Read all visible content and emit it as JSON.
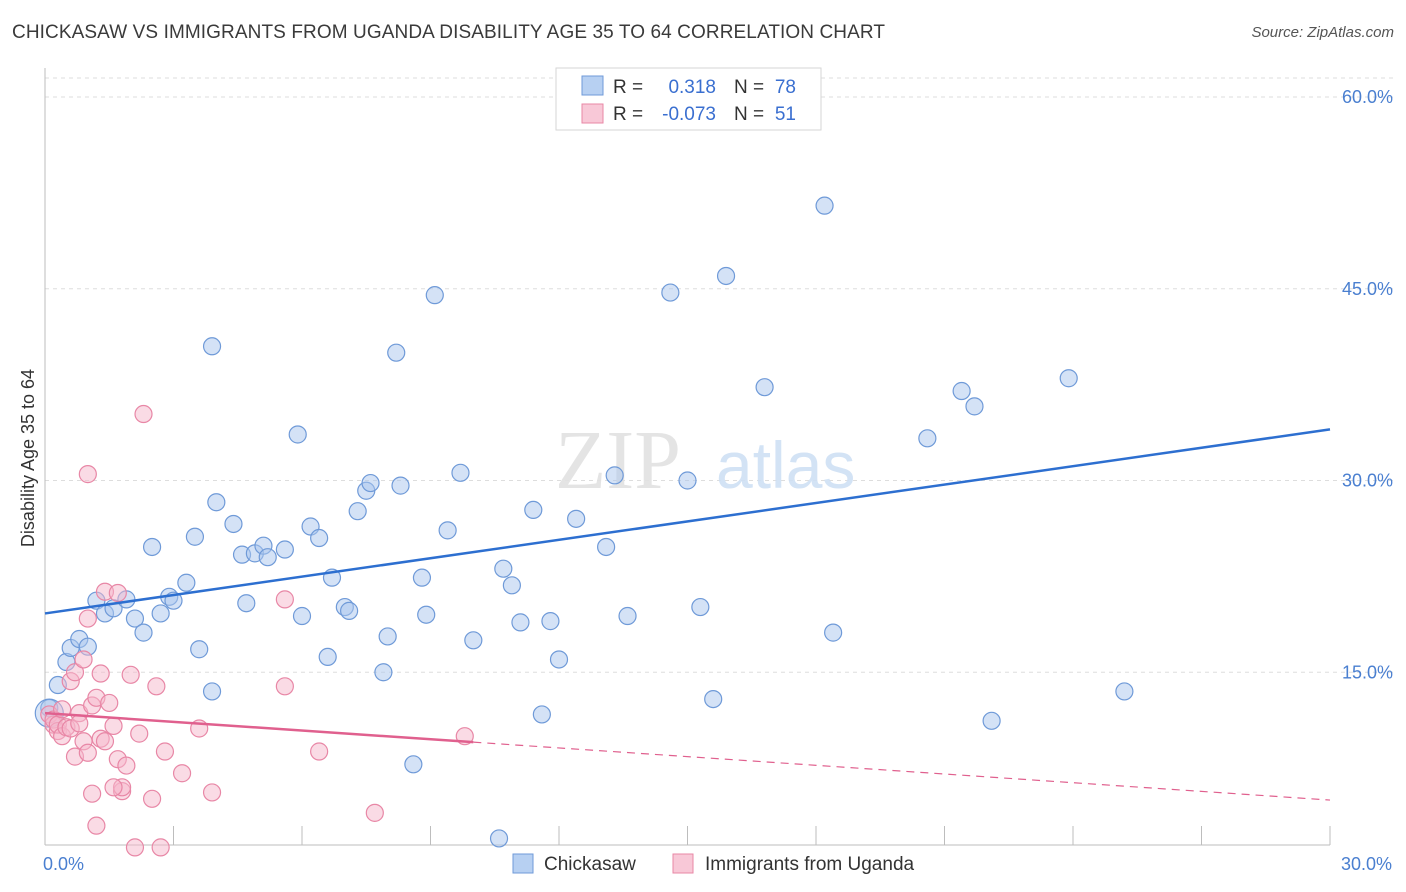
{
  "title": "CHICKASAW VS IMMIGRANTS FROM UGANDA DISABILITY AGE 35 TO 64 CORRELATION CHART",
  "source": "Source: ZipAtlas.com",
  "colors": {
    "blue_fill": "#a9c6ee",
    "blue_stroke": "#6f9ad8",
    "blue_line": "#2d6fd0",
    "pink_fill": "#f5b8cb",
    "pink_stroke": "#e887a6",
    "pink_line": "#e0608e",
    "grid": "#dddddd",
    "axis_text": "#4a7fd0"
  },
  "legend": {
    "r_label": "R =",
    "n_label": "N =",
    "series": [
      {
        "r": "0.318",
        "n": "78"
      },
      {
        "r": "-0.073",
        "n": "51"
      }
    ]
  },
  "watermark": {
    "zip": "ZIP",
    "atlas": "atlas"
  },
  "chart_data": {
    "type": "scatter",
    "title": "CHICKASAW VS IMMIGRANTS FROM UGANDA DISABILITY AGE 35 TO 64 CORRELATION CHART",
    "xlabel": "",
    "ylabel": "Disability Age 35 to 64",
    "xlim": [
      0,
      30
    ],
    "ylim": [
      0,
      60
    ],
    "y_ticks": [
      {
        "value": 15,
        "label": "15.0%"
      },
      {
        "value": 30,
        "label": "30.0%"
      },
      {
        "value": 45,
        "label": "45.0%"
      },
      {
        "value": 60,
        "label": "60.0%"
      }
    ],
    "x_tick_labels": [
      {
        "value": 0,
        "label": "0.0%"
      },
      {
        "value": 30,
        "label": "30.0%"
      }
    ],
    "x_minor_ticks": [
      0,
      3,
      6,
      9,
      12,
      15,
      18,
      21,
      24,
      27,
      30
    ],
    "series": [
      {
        "name": "Chickasaw",
        "color": "blue",
        "r": 0.318,
        "n": 78,
        "trend": {
          "x0": 0,
          "y0": 19.6,
          "x1": 30,
          "y1": 34.0,
          "solid_to": 30
        },
        "points": [
          [
            0.1,
            12.2
          ],
          [
            0.3,
            14.0
          ],
          [
            0.5,
            15.8
          ],
          [
            0.6,
            16.9
          ],
          [
            0.8,
            17.6
          ],
          [
            1.0,
            17.0
          ],
          [
            1.2,
            20.6
          ],
          [
            1.4,
            19.6
          ],
          [
            1.6,
            20.0
          ],
          [
            1.9,
            20.7
          ],
          [
            2.1,
            19.2
          ],
          [
            2.3,
            18.1
          ],
          [
            2.5,
            24.8
          ],
          [
            2.7,
            19.6
          ],
          [
            2.9,
            20.9
          ],
          [
            3.0,
            20.6
          ],
          [
            3.3,
            22.0
          ],
          [
            3.5,
            25.6
          ],
          [
            3.6,
            16.8
          ],
          [
            3.9,
            40.5
          ],
          [
            3.9,
            13.5
          ],
          [
            4.0,
            28.3
          ],
          [
            4.4,
            26.6
          ],
          [
            4.6,
            24.2
          ],
          [
            4.7,
            20.4
          ],
          [
            4.9,
            24.3
          ],
          [
            5.1,
            24.9
          ],
          [
            5.2,
            24.0
          ],
          [
            5.6,
            24.6
          ],
          [
            5.9,
            33.6
          ],
          [
            6.0,
            19.4
          ],
          [
            6.2,
            26.4
          ],
          [
            6.4,
            25.5
          ],
          [
            6.6,
            16.2
          ],
          [
            6.7,
            22.4
          ],
          [
            7.0,
            20.1
          ],
          [
            7.1,
            19.8
          ],
          [
            7.3,
            27.6
          ],
          [
            7.5,
            29.2
          ],
          [
            7.6,
            29.8
          ],
          [
            7.9,
            15.0
          ],
          [
            8.0,
            17.8
          ],
          [
            8.2,
            40.0
          ],
          [
            8.3,
            29.6
          ],
          [
            8.6,
            7.8
          ],
          [
            8.8,
            22.4
          ],
          [
            8.9,
            19.5
          ],
          [
            9.1,
            44.5
          ],
          [
            9.4,
            26.1
          ],
          [
            9.7,
            30.6
          ],
          [
            10.0,
            17.5
          ],
          [
            10.6,
            2.0
          ],
          [
            10.7,
            23.1
          ],
          [
            10.9,
            21.8
          ],
          [
            11.1,
            18.9
          ],
          [
            11.4,
            27.7
          ],
          [
            11.6,
            11.7
          ],
          [
            11.8,
            19.0
          ],
          [
            12.0,
            16.0
          ],
          [
            12.4,
            27.0
          ],
          [
            13.1,
            24.8
          ],
          [
            13.3,
            30.4
          ],
          [
            13.6,
            19.4
          ],
          [
            14.6,
            44.7
          ],
          [
            15.0,
            30.0
          ],
          [
            15.3,
            20.1
          ],
          [
            15.6,
            12.9
          ],
          [
            15.9,
            46.0
          ],
          [
            16.8,
            37.3
          ],
          [
            18.2,
            51.5
          ],
          [
            18.4,
            18.1
          ],
          [
            20.6,
            33.3
          ],
          [
            21.4,
            37.0
          ],
          [
            21.7,
            35.8
          ],
          [
            22.1,
            11.2
          ],
          [
            23.9,
            38.0
          ],
          [
            25.2,
            13.5
          ],
          [
            0.1,
            11.8
          ]
        ]
      },
      {
        "name": "Immigrants from Uganda",
        "color": "pink",
        "r": -0.073,
        "n": 51,
        "trend": {
          "x0": 0,
          "y0": 11.8,
          "x1": 30,
          "y1": 5.0,
          "solid_to": 10.0
        },
        "points": [
          [
            0.1,
            11.7
          ],
          [
            0.2,
            10.9
          ],
          [
            0.2,
            11.3
          ],
          [
            0.3,
            10.4
          ],
          [
            0.3,
            10.9
          ],
          [
            0.4,
            10.0
          ],
          [
            0.4,
            12.1
          ],
          [
            0.5,
            10.7
          ],
          [
            0.6,
            14.3
          ],
          [
            0.6,
            10.6
          ],
          [
            0.7,
            8.4
          ],
          [
            0.7,
            15.0
          ],
          [
            0.8,
            11.8
          ],
          [
            0.8,
            11.0
          ],
          [
            0.9,
            9.6
          ],
          [
            0.9,
            16.0
          ],
          [
            1.0,
            8.7
          ],
          [
            1.0,
            30.5
          ],
          [
            1.0,
            19.2
          ],
          [
            1.1,
            5.5
          ],
          [
            1.1,
            12.4
          ],
          [
            1.2,
            13.0
          ],
          [
            1.2,
            3.0
          ],
          [
            1.3,
            14.9
          ],
          [
            1.3,
            9.8
          ],
          [
            1.4,
            21.3
          ],
          [
            1.4,
            9.6
          ],
          [
            1.5,
            12.6
          ],
          [
            1.6,
            10.8
          ],
          [
            1.7,
            21.2
          ],
          [
            1.7,
            8.2
          ],
          [
            1.8,
            5.7
          ],
          [
            1.8,
            6.0
          ],
          [
            1.9,
            7.7
          ],
          [
            2.0,
            14.8
          ],
          [
            2.1,
            1.3
          ],
          [
            2.2,
            10.2
          ],
          [
            2.3,
            35.2
          ],
          [
            2.5,
            5.1
          ],
          [
            2.6,
            13.9
          ],
          [
            2.7,
            1.3
          ],
          [
            2.8,
            8.8
          ],
          [
            3.2,
            7.1
          ],
          [
            3.6,
            10.6
          ],
          [
            3.9,
            5.6
          ],
          [
            5.6,
            20.7
          ],
          [
            5.6,
            13.9
          ],
          [
            6.4,
            8.8
          ],
          [
            7.7,
            4.0
          ],
          [
            9.8,
            10.0
          ],
          [
            1.6,
            6.0
          ]
        ]
      }
    ],
    "legend_placement": "top-center"
  },
  "bottom_legend": [
    {
      "label": "Chickasaw"
    },
    {
      "label": "Immigrants from Uganda"
    }
  ]
}
